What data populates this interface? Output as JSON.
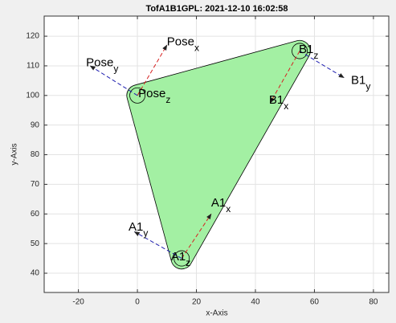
{
  "chart_data": {
    "type": "frames",
    "title": "TofA1B1GPL: 2021-12-10 16:02:58",
    "xlabel": "x-Axis",
    "ylabel": "y-Axis",
    "xlim": [
      -31.6,
      85.2
    ],
    "ylim": [
      33.5,
      126.8
    ],
    "xticks": [
      -20,
      0,
      20,
      40,
      60,
      80
    ],
    "yticks": [
      40,
      50,
      60,
      70,
      80,
      90,
      100,
      110,
      120
    ],
    "grid": true,
    "hull_color": "#a3f0a3",
    "x_axis_color": "#d62020",
    "y_axis_color": "#2020b0",
    "hull_radius": 3.6,
    "circle_radius": 2.6,
    "axis_names": [
      "x",
      "y",
      "z"
    ],
    "frames": [
      {
        "name": "Pose",
        "origin": [
          0,
          100
        ],
        "x_end": [
          10,
          117
        ],
        "y_end": [
          -16,
          110
        ],
        "x_label": [
          10,
          118
        ],
        "y_label": [
          -17.4,
          111
        ],
        "z_label": [
          0.3,
          100.5
        ]
      },
      {
        "name": "B1",
        "origin": [
          55,
          115
        ],
        "x_end": [
          45,
          97.5
        ],
        "y_end": [
          70,
          106
        ],
        "x_label": [
          44.6,
          98.3
        ],
        "y_label": [
          72.4,
          105
        ],
        "z_label": [
          54.7,
          115.4
        ]
      },
      {
        "name": "A1",
        "origin": [
          15,
          45
        ],
        "x_end": [
          25,
          60
        ],
        "y_end": [
          -1,
          54
        ],
        "x_label": [
          25,
          63.6
        ],
        "y_label": [
          -3,
          55.5
        ],
        "z_label": [
          11.4,
          45.5
        ]
      }
    ]
  }
}
